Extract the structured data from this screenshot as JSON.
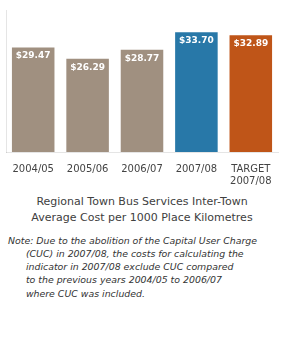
{
  "chart_data": {
    "type": "bar",
    "title": "Regional Town Bus Services Inter-Town\nAverage Cost per 1000 Place Kilometres",
    "categories": [
      "2004/05",
      "2005/06",
      "2006/07",
      "2007/08",
      "TARGET\n2007/08"
    ],
    "values": [
      29.47,
      26.29,
      28.77,
      33.7,
      32.89
    ],
    "colors": [
      "#a09080",
      "#a09080",
      "#a09080",
      "#2878a8",
      "#bf5518"
    ],
    "data_labels": true,
    "value_labels": [
      "$29.47",
      "$26.29",
      "$28.77",
      "$33.70",
      "$32.89"
    ],
    "ylim": [
      0,
      40
    ],
    "grid": false,
    "tick_labels": "x",
    "annotations": [
      "Note: Due to the abolition of the Capital User Charge\n      (CUC) in 2007/08, the costs for calculating the\n      indicator in 2007/08 exclude CUC compared\n      to the previous years 2004/05 to 2006/07\n      where CUC was included."
    ]
  }
}
